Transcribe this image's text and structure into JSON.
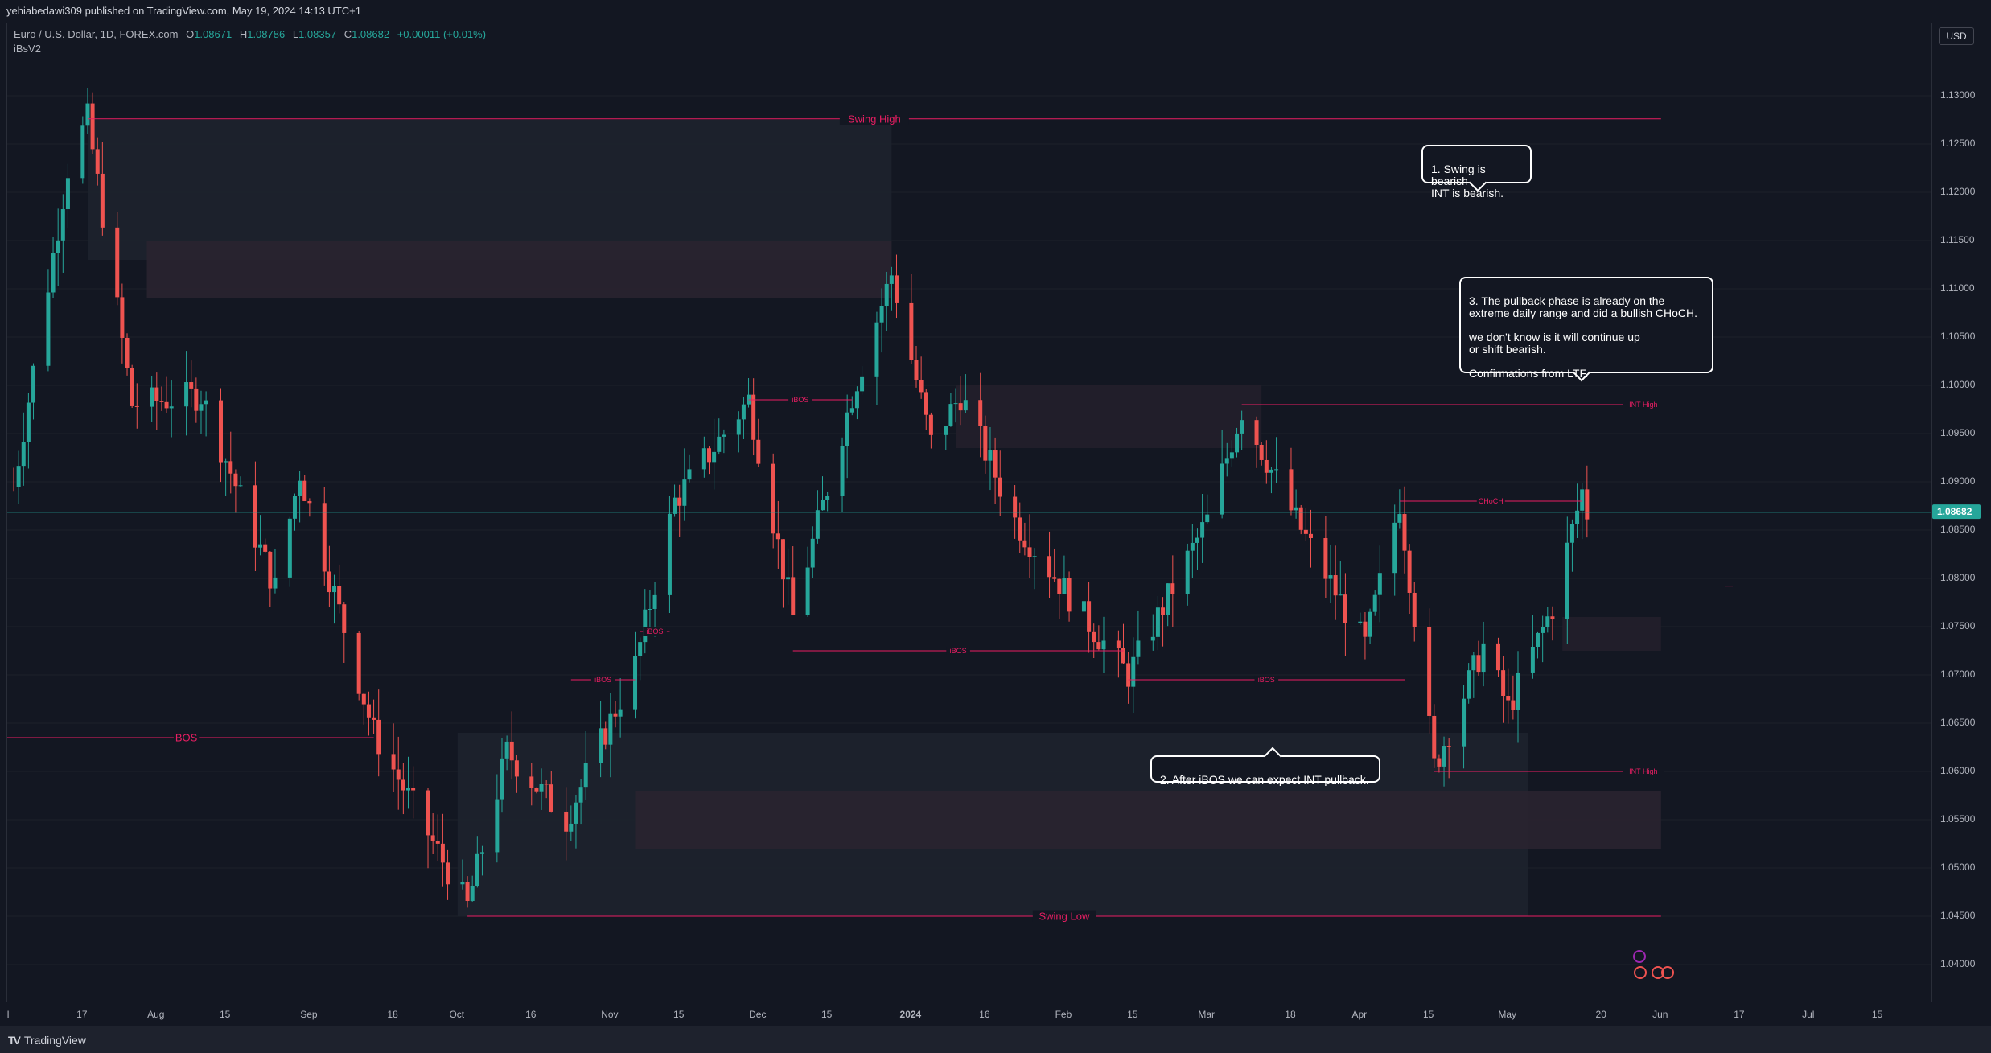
{
  "header": {
    "published": "yehiabedawi309 published on TradingView.com, May 19, 2024 14:13 UTC+1"
  },
  "legend": {
    "symbol": "Euro / U.S. Dollar, 1D, FOREX.com",
    "open_label": "O",
    "open": "1.08671",
    "high_label": "H",
    "high": "1.08786",
    "low_label": "L",
    "low": "1.08357",
    "close_label": "C",
    "close": "1.08682",
    "change": "+0.00011 (+0.01%)",
    "indicator": "iBsV2"
  },
  "price_axis": {
    "currency": "USD",
    "current_price": "1.08682"
  },
  "footer": {
    "brand": "TradingView"
  },
  "callouts": {
    "c1": "1. Swing is bearish\nINT is bearish.",
    "c2": "2. After iBOS we can expect INT pullback.",
    "c3": "3. The pullback phase is already on the\nextreme daily range and did a bullish CHoCH.\n\nwe don't know is it will continue up\nor shift bearish.\n\nConfirmations from LTF."
  },
  "colors": {
    "background": "#131722",
    "up": "#26a69a",
    "down": "#ef5350",
    "structure": "#e91e63",
    "current_price": "#26a69a"
  },
  "chart_data": {
    "type": "candlestick",
    "symbol": "EURUSD",
    "timeframe": "1D",
    "x_ticks": [
      "Jul",
      "17",
      "Aug",
      "15",
      "Sep",
      "18",
      "Oct",
      "16",
      "Nov",
      "15",
      "Dec",
      "15",
      "2024",
      "16",
      "Feb",
      "15",
      "Mar",
      "18",
      "Apr",
      "15",
      "May",
      "20",
      "Jun",
      "17",
      "Jul",
      "15"
    ],
    "y_ticks": [
      "1.13000",
      "1.12500",
      "1.12000",
      "1.11500",
      "1.11000",
      "1.10500",
      "1.10000",
      "1.09500",
      "1.09000",
      "1.08500",
      "1.08000",
      "1.07500",
      "1.07000",
      "1.06500",
      "1.06000",
      "1.05500",
      "1.05000",
      "1.04500",
      "1.04000"
    ],
    "ylim": [
      1.036,
      1.1375
    ],
    "anchors": [
      {
        "date": "2023-07-03",
        "price": 1.0895
      },
      {
        "date": "2023-07-14",
        "price": 1.1225
      },
      {
        "date": "2023-07-18",
        "price": 1.1276
      },
      {
        "date": "2023-07-27",
        "price": 1.098
      },
      {
        "date": "2023-08-10",
        "price": 1.099
      },
      {
        "date": "2023-08-25",
        "price": 1.079
      },
      {
        "date": "2023-08-30",
        "price": 1.091
      },
      {
        "date": "2023-09-14",
        "price": 1.064
      },
      {
        "date": "2023-10-03",
        "price": 1.046
      },
      {
        "date": "2023-10-11",
        "price": 1.062
      },
      {
        "date": "2023-10-23",
        "price": 1.055
      },
      {
        "date": "2023-11-06",
        "price": 1.071
      },
      {
        "date": "2023-11-14",
        "price": 1.088
      },
      {
        "date": "2023-11-29",
        "price": 1.0985
      },
      {
        "date": "2023-12-08",
        "price": 1.076
      },
      {
        "date": "2023-12-20",
        "price": 1.099
      },
      {
        "date": "2023-12-28",
        "price": 1.1115
      },
      {
        "date": "2024-01-05",
        "price": 1.094
      },
      {
        "date": "2024-01-11",
        "price": 1.099
      },
      {
        "date": "2024-01-22",
        "price": 1.086
      },
      {
        "date": "2024-02-05",
        "price": 1.076
      },
      {
        "date": "2024-02-14",
        "price": 1.07
      },
      {
        "date": "2024-03-01",
        "price": 1.086
      },
      {
        "date": "2024-03-08",
        "price": 1.0975
      },
      {
        "date": "2024-03-19",
        "price": 1.086
      },
      {
        "date": "2024-04-02",
        "price": 1.073
      },
      {
        "date": "2024-04-09",
        "price": 1.088
      },
      {
        "date": "2024-04-16",
        "price": 1.0605
      },
      {
        "date": "2024-04-26",
        "price": 1.073
      },
      {
        "date": "2024-05-01",
        "price": 1.0665
      },
      {
        "date": "2024-05-10",
        "price": 1.077
      },
      {
        "date": "2024-05-16",
        "price": 1.089
      },
      {
        "date": "2024-05-17",
        "price": 1.0868
      }
    ],
    "levels": [
      {
        "label": "Swing High",
        "price": 1.1276,
        "from": "2023-07-18",
        "to": "2024-06-01"
      },
      {
        "label": "Swing Low",
        "price": 1.045,
        "from": "2023-10-03",
        "to": "2024-06-01"
      },
      {
        "label": "BOS",
        "price": 1.0635,
        "from": "2023-06-30",
        "to": "2023-09-14"
      },
      {
        "label": "iBOS",
        "price": 1.0985,
        "from": "2023-11-29",
        "to": "2023-12-20"
      },
      {
        "label": "iBOS",
        "price": 1.0745,
        "from": "2023-11-07",
        "to": "2023-11-13"
      },
      {
        "label": "iBOS",
        "price": 1.0695,
        "from": "2023-10-24",
        "to": "2023-11-06"
      },
      {
        "label": "iBOS",
        "price": 1.0725,
        "from": "2023-12-08",
        "to": "2024-02-13"
      },
      {
        "label": "iBOS",
        "price": 1.0695,
        "from": "2024-02-14",
        "to": "2024-04-10"
      },
      {
        "label": "INT High",
        "price": 1.098,
        "from": "2024-03-08",
        "to": "2024-06-01"
      },
      {
        "label": "CHoCH",
        "price": 1.088,
        "from": "2024-04-09",
        "to": "2024-05-16"
      },
      {
        "label": "INT High",
        "price": 1.06,
        "from": "2024-04-16",
        "to": "2024-06-01"
      }
    ],
    "zones": [
      {
        "from": "2023-07-18",
        "to": "2023-12-28",
        "top": 1.1275,
        "bottom": 1.113,
        "color": "#1e222d"
      },
      {
        "from": "2023-07-30",
        "to": "2023-12-28",
        "top": 1.115,
        "bottom": 1.109,
        "color": "#2a2330"
      },
      {
        "from": "2024-01-10",
        "to": "2024-03-12",
        "top": 1.1,
        "bottom": 1.0935,
        "color": "#241f2b"
      },
      {
        "from": "2023-10-01",
        "to": "2024-05-05",
        "top": 1.064,
        "bottom": 1.045,
        "color": "#1e222d"
      },
      {
        "from": "2023-11-06",
        "to": "2024-06-01",
        "top": 1.058,
        "bottom": 1.052,
        "color": "#2a2330"
      },
      {
        "from": "2024-05-12",
        "to": "2024-06-01",
        "top": 1.076,
        "bottom": 1.0725,
        "color": "#241f2b"
      }
    ]
  }
}
